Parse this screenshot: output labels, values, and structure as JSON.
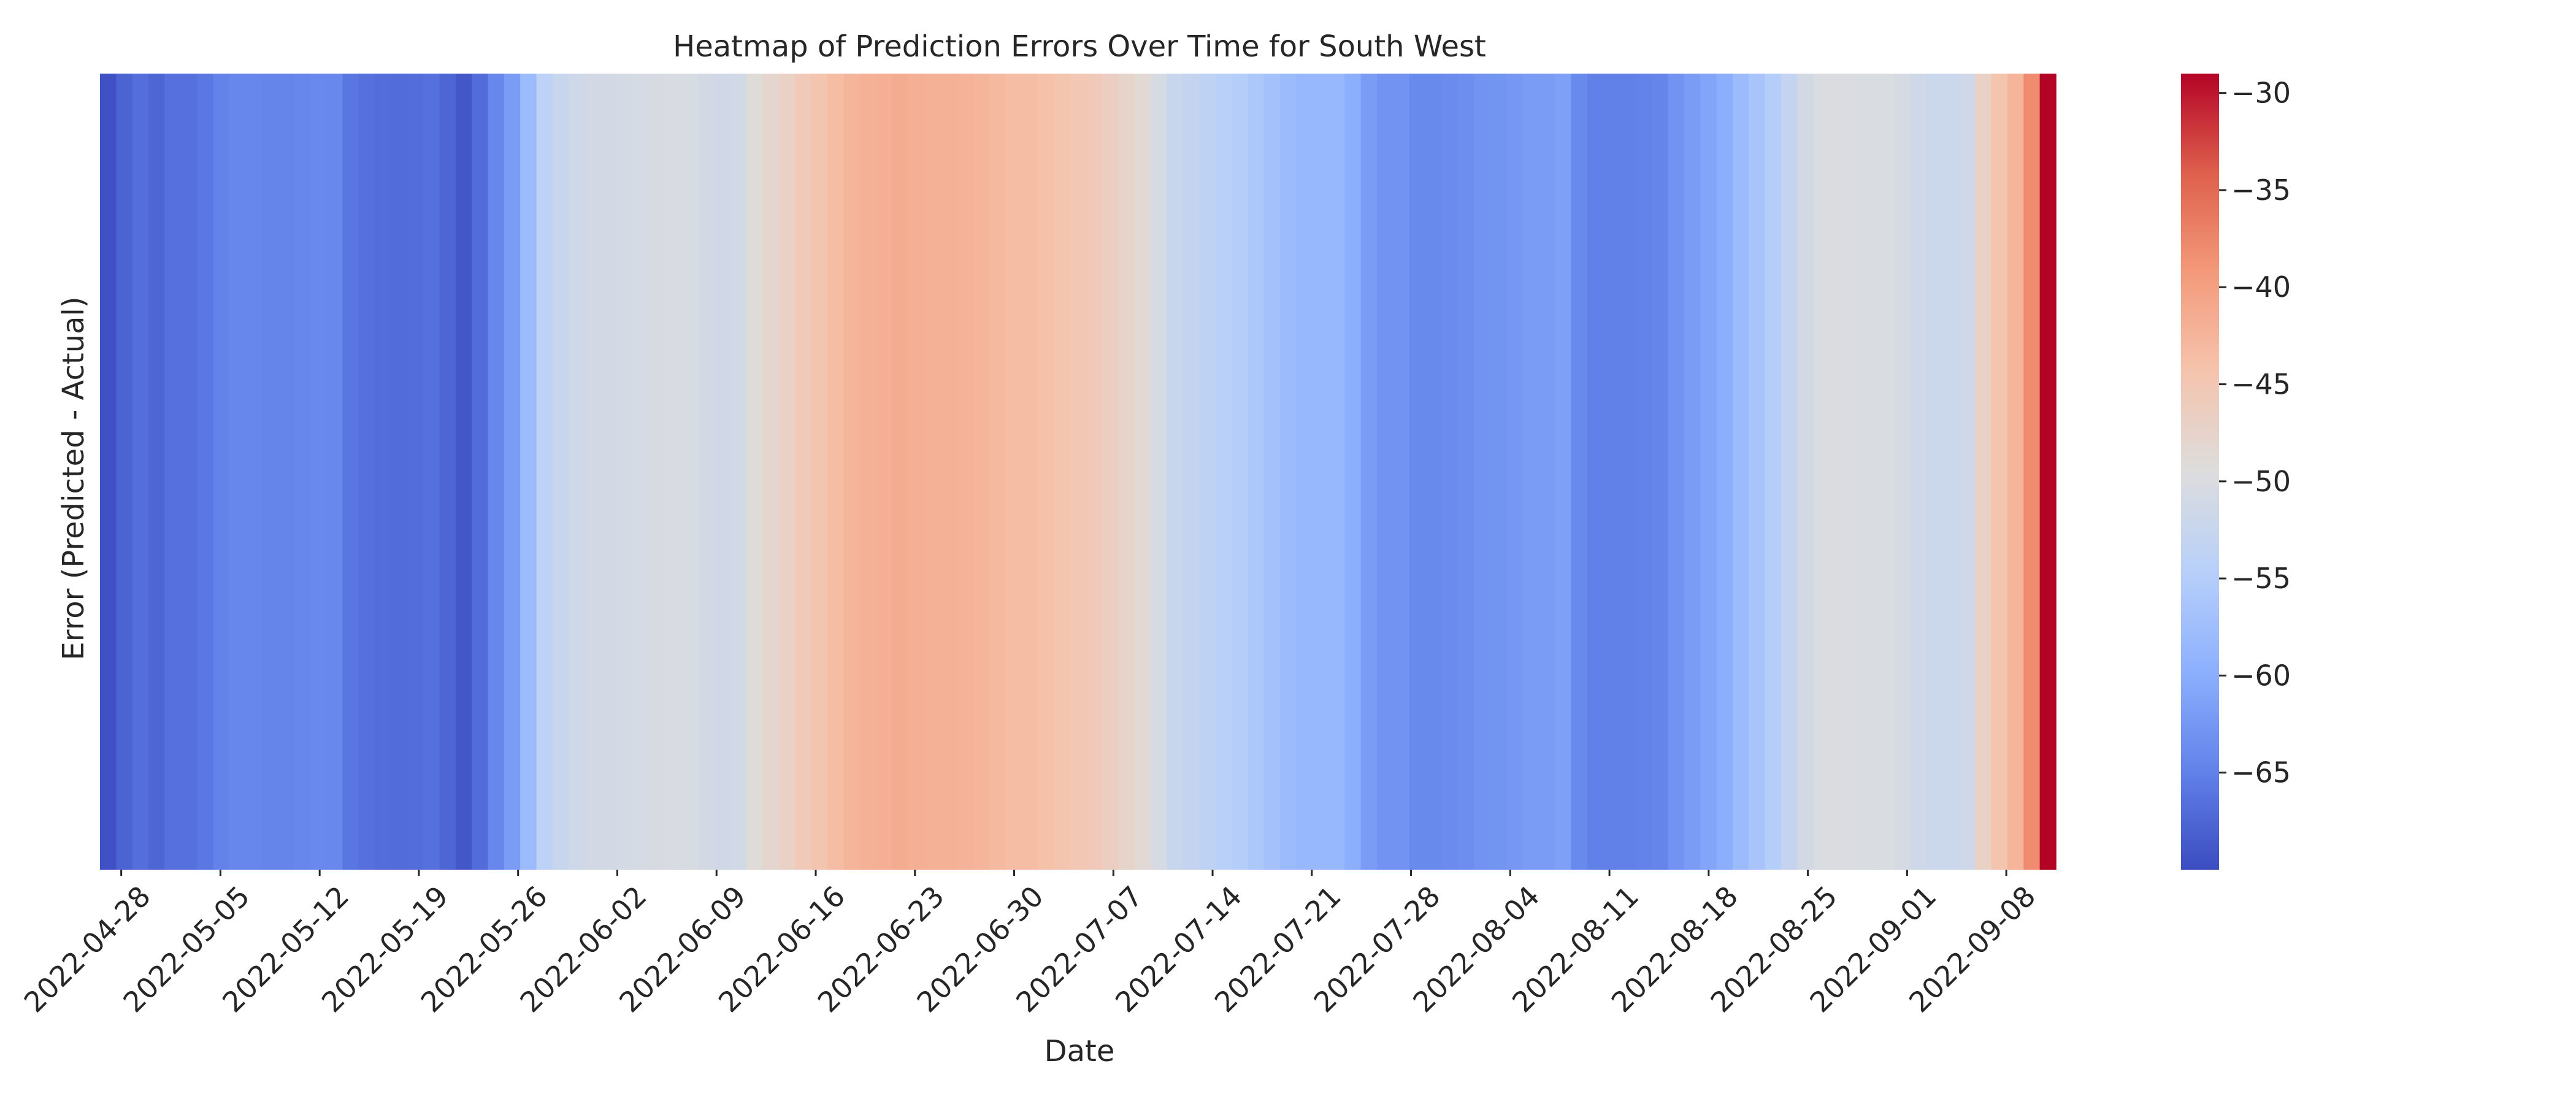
{
  "chart_data": {
    "type": "heatmap",
    "title": "Heatmap of Prediction Errors Over Time for South West",
    "xlabel": "Date",
    "ylabel": "Error (Predicted - Actual)",
    "x_start": "2022-04-27",
    "x_end": "2022-09-11",
    "x_tick_labels": [
      "2022-04-28",
      "2022-05-05",
      "2022-05-12",
      "2022-05-19",
      "2022-05-26",
      "2022-06-02",
      "2022-06-09",
      "2022-06-16",
      "2022-06-23",
      "2022-06-30",
      "2022-07-07",
      "2022-07-14",
      "2022-07-21",
      "2022-07-28",
      "2022-08-04",
      "2022-08-11",
      "2022-08-18",
      "2022-08-25",
      "2022-09-01",
      "2022-09-08"
    ],
    "values": [
      -69.5,
      -67.8,
      -66.7,
      -67.5,
      -66.5,
      -66.5,
      -65.9,
      -64.8,
      -64.3,
      -64.3,
      -64.5,
      -64.5,
      -64.3,
      -64.1,
      -64.2,
      -66.0,
      -66.5,
      -66.8,
      -67.0,
      -66.8,
      -66.5,
      -67.5,
      -69.0,
      -67.0,
      -64.3,
      -62.0,
      -58.0,
      -54.0,
      -52.5,
      -51.5,
      -51.0,
      -51.0,
      -50.8,
      -50.5,
      -50.3,
      -50.2,
      -50.4,
      -51.0,
      -51.3,
      -51.2,
      -49.0,
      -48.0,
      -47.0,
      -45.5,
      -44.5,
      -43.5,
      -42.5,
      -42.0,
      -41.8,
      -41.5,
      -41.8,
      -42.0,
      -42.0,
      -42.2,
      -42.5,
      -43.0,
      -43.5,
      -43.5,
      -44.0,
      -44.5,
      -45.0,
      -45.5,
      -46.5,
      -47.5,
      -48.5,
      -50.5,
      -52.5,
      -53.0,
      -53.8,
      -54.5,
      -55.0,
      -56.0,
      -57.0,
      -58.0,
      -58.5,
      -58.5,
      -58.5,
      -60.0,
      -62.0,
      -63.0,
      -63.0,
      -64.0,
      -64.0,
      -63.8,
      -63.5,
      -63.0,
      -62.8,
      -62.5,
      -62.0,
      -62.0,
      -61.5,
      -64.0,
      -65.0,
      -65.0,
      -65.0,
      -64.8,
      -64.5,
      -63.0,
      -62.0,
      -61.0,
      -60.0,
      -58.0,
      -56.5,
      -55.0,
      -53.0,
      -51.0,
      -50.0,
      -49.8,
      -50.0,
      -50.0,
      -50.0,
      -50.5,
      -51.5,
      -52.0,
      -52.0,
      -51.5,
      -47.0,
      -44.5,
      -42.5,
      -38.0,
      -29.0
    ],
    "colorbar": {
      "cmap": "coolwarm",
      "min": -70,
      "max": -29,
      "ticks": [
        "−30",
        "−35",
        "−40",
        "−45",
        "−50",
        "−55",
        "−60",
        "−65"
      ]
    },
    "grid": false
  }
}
